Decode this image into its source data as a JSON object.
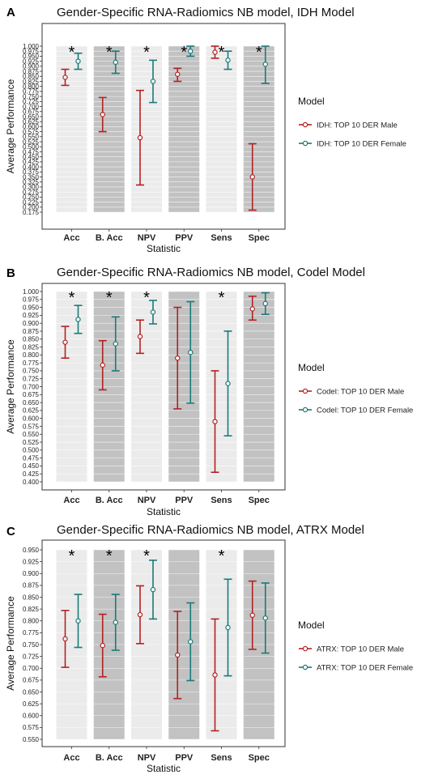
{
  "colors": {
    "male": "#b22222",
    "female": "#1b7a7a"
  },
  "chart_data": [
    {
      "type": "errorbar",
      "panel": "A",
      "title": "Gender-Specific RNA-Radiomics NB model, IDH Model",
      "xlabel": "Statistic",
      "ylabel": "Average Performance",
      "ylim": [
        0.175,
        1.0
      ],
      "yticks": [
        1.0,
        0.975,
        0.95,
        0.925,
        0.9,
        0.875,
        0.85,
        0.825,
        0.8,
        0.775,
        0.75,
        0.725,
        0.7,
        0.675,
        0.65,
        0.625,
        0.6,
        0.575,
        0.55,
        0.525,
        0.5,
        0.475,
        0.45,
        0.425,
        0.4,
        0.375,
        0.35,
        0.325,
        0.3,
        0.275,
        0.25,
        0.225,
        0.2,
        0.175
      ],
      "ytick_labels": [
        "1.000",
        "0.975",
        "0.950",
        "0.925",
        "0.900",
        "0.875",
        "0.850",
        "0.825",
        "0.800",
        "0.775",
        "0.750",
        "0.725",
        "0.700",
        "0.675",
        "0.650",
        "0.625",
        "0.600",
        "0.575",
        "0.550",
        "0.525",
        "0.500",
        "0.475",
        "0.450",
        "0.425",
        "0.400",
        "0.375",
        "0.350",
        "0.325",
        "0.300",
        "0.275",
        "0.250",
        "0.225",
        "0.200",
        "0.175"
      ],
      "categories": [
        "Acc",
        "B. Acc",
        "NPV",
        "PPV",
        "Sens",
        "Spec"
      ],
      "significant": [
        true,
        true,
        true,
        true,
        true,
        true
      ],
      "legend_title": "Model",
      "legend_position": "right",
      "series": [
        {
          "name": "IDH: TOP 10 DER Male",
          "color_key": "male",
          "mean": [
            0.845,
            0.66,
            0.545,
            0.86,
            0.97,
            0.35
          ],
          "lower": [
            0.805,
            0.575,
            0.31,
            0.825,
            0.94,
            0.185
          ],
          "upper": [
            0.885,
            0.745,
            0.78,
            0.89,
            1.0,
            0.515
          ]
        },
        {
          "name": "IDH: TOP 10 DER Female",
          "color_key": "female",
          "mean": [
            0.925,
            0.92,
            0.825,
            0.975,
            0.93,
            0.91
          ],
          "lower": [
            0.885,
            0.865,
            0.72,
            0.95,
            0.885,
            0.815
          ],
          "upper": [
            0.965,
            0.975,
            0.93,
            1.0,
            0.975,
            1.0
          ]
        }
      ]
    },
    {
      "type": "errorbar",
      "panel": "B",
      "title": "Gender-Specific RNA-Radiomics NB model, Codel Model",
      "xlabel": "Statistic",
      "ylabel": "Average Performance",
      "ylim": [
        0.4,
        1.0
      ],
      "yticks": [
        1.0,
        0.975,
        0.95,
        0.925,
        0.9,
        0.875,
        0.85,
        0.825,
        0.8,
        0.775,
        0.75,
        0.725,
        0.7,
        0.675,
        0.65,
        0.625,
        0.6,
        0.575,
        0.55,
        0.525,
        0.5,
        0.475,
        0.45,
        0.425,
        0.4
      ],
      "ytick_labels": [
        "1.000",
        "0.975",
        "0.950",
        "0.925",
        "0.900",
        "0.875",
        "0.850",
        "0.825",
        "0.800",
        "0.775",
        "0.750",
        "0.725",
        "0.700",
        "0.675",
        "0.650",
        "0.625",
        "0.600",
        "0.575",
        "0.550",
        "0.525",
        "0.500",
        "0.475",
        "0.450",
        "0.425",
        "0.400"
      ],
      "categories": [
        "Acc",
        "B. Acc",
        "NPV",
        "PPV",
        "Sens",
        "Spec"
      ],
      "significant": [
        true,
        true,
        true,
        false,
        true,
        false
      ],
      "legend_title": "Model",
      "legend_position": "right",
      "series": [
        {
          "name": "Codel: TOP 10 DER Male",
          "color_key": "male",
          "mean": [
            0.84,
            0.768,
            0.858,
            0.79,
            0.59,
            0.945
          ],
          "lower": [
            0.79,
            0.69,
            0.805,
            0.63,
            0.43,
            0.91
          ],
          "upper": [
            0.89,
            0.845,
            0.91,
            0.95,
            0.75,
            0.985
          ]
        },
        {
          "name": "Codel: TOP 10 DER Female",
          "color_key": "female",
          "mean": [
            0.912,
            0.835,
            0.935,
            0.808,
            0.71,
            0.962
          ],
          "lower": [
            0.868,
            0.75,
            0.898,
            0.648,
            0.545,
            0.928
          ],
          "upper": [
            0.956,
            0.92,
            0.972,
            0.968,
            0.875,
            0.996
          ]
        }
      ]
    },
    {
      "type": "errorbar",
      "panel": "C",
      "title": "Gender-Specific RNA-Radiomics NB model, ATRX Model",
      "xlabel": "Statistic",
      "ylabel": "Average Performance",
      "ylim": [
        0.55,
        0.95
      ],
      "yticks": [
        0.95,
        0.925,
        0.9,
        0.875,
        0.85,
        0.825,
        0.8,
        0.775,
        0.75,
        0.725,
        0.7,
        0.675,
        0.65,
        0.625,
        0.6,
        0.575,
        0.55
      ],
      "ytick_labels": [
        "0.950",
        "0.925",
        "0.900",
        "0.875",
        "0.850",
        "0.825",
        "0.800",
        "0.775",
        "0.750",
        "0.725",
        "0.700",
        "0.675",
        "0.650",
        "0.625",
        "0.600",
        "0.575",
        "0.550"
      ],
      "categories": [
        "Acc",
        "B. Acc",
        "NPV",
        "PPV",
        "Sens",
        "Spec"
      ],
      "significant": [
        true,
        true,
        true,
        false,
        true,
        false
      ],
      "legend_title": "Model",
      "legend_position": "right",
      "series": [
        {
          "name": "ATRX: TOP 10 DER Male",
          "color_key": "male",
          "mean": [
            0.762,
            0.748,
            0.813,
            0.728,
            0.686,
            0.812
          ],
          "lower": [
            0.702,
            0.682,
            0.752,
            0.636,
            0.568,
            0.74
          ],
          "upper": [
            0.822,
            0.814,
            0.874,
            0.82,
            0.804,
            0.884
          ]
        },
        {
          "name": "ATRX: TOP 10 DER Female",
          "color_key": "female",
          "mean": [
            0.8,
            0.797,
            0.866,
            0.756,
            0.786,
            0.806
          ],
          "lower": [
            0.744,
            0.738,
            0.804,
            0.674,
            0.684,
            0.732
          ],
          "upper": [
            0.856,
            0.856,
            0.928,
            0.838,
            0.888,
            0.88
          ]
        }
      ]
    }
  ]
}
